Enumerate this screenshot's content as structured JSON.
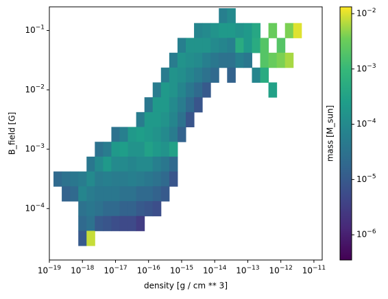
{
  "chart_data": {
    "type": "histogram2d",
    "x_label": "density [g / cm ** 3]",
    "y_label": "B_field [G]",
    "colorbar_label": "mass [M_sun]",
    "xscale": "log",
    "yscale": "log",
    "colorscale": "log",
    "colormap": "viridis",
    "xlim": [
      1e-19,
      1.78e-11
    ],
    "ylim": [
      1.36e-05,
      0.25
    ],
    "clim": [
      3.5e-07,
      0.0133
    ],
    "xticks": [
      {
        "value": 1e-19,
        "label": "10−19"
      },
      {
        "value": 1e-18,
        "label": "10−18"
      },
      {
        "value": 1e-17,
        "label": "10−17"
      },
      {
        "value": 1e-16,
        "label": "10−16"
      },
      {
        "value": 1e-15,
        "label": "10−15"
      },
      {
        "value": 1e-14,
        "label": "10−14"
      },
      {
        "value": 1e-13,
        "label": "10−13"
      },
      {
        "value": 1e-12,
        "label": "10−12"
      },
      {
        "value": 1e-11,
        "label": "10−11"
      }
    ],
    "yticks": [
      {
        "value": 0.0001,
        "label": "10−4"
      },
      {
        "value": 0.001,
        "label": "10−3"
      },
      {
        "value": 0.01,
        "label": "10−2"
      },
      {
        "value": 0.1,
        "label": "10−1"
      }
    ],
    "cticks": [
      {
        "value": 1e-06,
        "label": "10−6"
      },
      {
        "value": 1e-05,
        "label": "10−5"
      },
      {
        "value": 0.0001,
        "label": "10−4"
      },
      {
        "value": 0.001,
        "label": "10−3"
      },
      {
        "value": 0.01,
        "label": "10−2"
      }
    ],
    "columns": [
      {
        "x": 1.778e-19,
        "y": [
          0.0003162
        ],
        "mass": [
          2e-05
        ]
      },
      {
        "x": 3.162e-19,
        "y": [
          0.0003162,
          0.0001778
        ],
        "mass": [
          3e-05,
          1.5e-05
        ]
      },
      {
        "x": 5.623e-19,
        "y": [
          0.0003162,
          0.0001778
        ],
        "mass": [
          4e-05,
          2e-05
        ]
      },
      {
        "x": 1e-18,
        "y": [
          0.0003162,
          0.0001778,
          0.0001,
          5.623e-05,
          3.162e-05
        ],
        "mass": [
          5e-05,
          8e-05,
          3e-05,
          2e-05,
          1e-05
        ]
      },
      {
        "x": 1.778e-18,
        "y": [
          0.0005623,
          0.0003162,
          0.0001778,
          0.0001,
          5.623e-05,
          3.162e-05
        ],
        "mass": [
          4e-05,
          0.0001,
          5e-05,
          4e-05,
          3e-05,
          0.008
        ]
      },
      {
        "x": 3.162e-18,
        "y": [
          0.001,
          0.0005623,
          0.0003162,
          0.0001778,
          0.0001,
          5.623e-05
        ],
        "mass": [
          3e-05,
          0.0001,
          5e-05,
          4e-05,
          3e-05,
          1e-05
        ]
      },
      {
        "x": 5.623e-18,
        "y": [
          0.001,
          0.0005623,
          0.0003162,
          0.0001778,
          0.0001,
          5.623e-05
        ],
        "mass": [
          5e-05,
          0.0002,
          6e-05,
          4e-05,
          2e-05,
          8e-06
        ]
      },
      {
        "x": 1e-17,
        "y": [
          0.001778,
          0.001,
          0.0005623,
          0.0003162,
          0.0001778,
          0.0001,
          5.623e-05
        ],
        "mass": [
          3e-05,
          0.0002,
          0.0001,
          5e-05,
          4e-05,
          2e-05,
          6e-06
        ]
      },
      {
        "x": 1.778e-17,
        "y": [
          0.001778,
          0.001,
          0.0005623,
          0.0003162,
          0.0001778,
          0.0001,
          5.623e-05
        ],
        "mass": [
          6e-05,
          0.00025,
          0.0001,
          5e-05,
          3e-05,
          1.5e-05,
          5e-06
        ]
      },
      {
        "x": 3.162e-17,
        "y": [
          0.001778,
          0.001,
          0.0005623,
          0.0003162,
          0.0001778,
          0.0001,
          5.623e-05
        ],
        "mass": [
          0.0002,
          0.00015,
          8e-05,
          6e-05,
          3e-05,
          1.5e-05,
          5e-06
        ]
      },
      {
        "x": 5.623e-17,
        "y": [
          0.003162,
          0.001778,
          0.001,
          0.0005623,
          0.0003162,
          0.0001778,
          0.0001,
          5.623e-05
        ],
        "mass": [
          5e-05,
          0.00025,
          0.00015,
          0.0001,
          5e-05,
          2e-05,
          1e-05,
          3e-06
        ]
      },
      {
        "x": 1e-16,
        "y": [
          0.005623,
          0.003162,
          0.001778,
          0.001,
          0.0005623,
          0.0003162,
          0.0001778,
          0.0001
        ],
        "mass": [
          4e-05,
          0.0002,
          0.0002,
          0.0003,
          0.0001,
          4e-05,
          2e-05,
          8e-06
        ]
      },
      {
        "x": 1.778e-16,
        "y": [
          0.01,
          0.005623,
          0.003162,
          0.001778,
          0.001,
          0.0005623,
          0.0003162,
          0.0001778,
          0.0001
        ],
        "mass": [
          5e-05,
          0.0002,
          0.0002,
          0.00015,
          0.0002,
          6e-05,
          3e-05,
          1.5e-05,
          6e-06
        ]
      },
      {
        "x": 3.162e-16,
        "y": [
          0.01778,
          0.01,
          0.005623,
          0.003162,
          0.001778,
          0.001,
          0.0005623,
          0.0003162,
          0.0001778
        ],
        "mass": [
          5e-05,
          0.0002,
          0.0002,
          0.00015,
          0.0001,
          0.00015,
          4e-05,
          2e-05,
          1e-05
        ]
      },
      {
        "x": 5.623e-16,
        "y": [
          0.03162,
          0.01778,
          0.01,
          0.005623,
          0.003162,
          0.001778,
          0.001,
          0.0005623,
          0.0003162
        ],
        "mass": [
          5e-05,
          0.00015,
          0.00015,
          0.0001,
          8e-05,
          5e-05,
          0.0003,
          2e-05,
          8e-06
        ]
      },
      {
        "x": 1e-15,
        "y": [
          0.05623,
          0.03162,
          0.01778,
          0.01,
          0.005623,
          0.003162,
          0.001778
        ],
        "mass": [
          6e-05,
          0.00015,
          0.00012,
          8e-05,
          5e-05,
          3e-05,
          1.5e-05
        ]
      },
      {
        "x": 1.778e-15,
        "y": [
          0.05623,
          0.03162,
          0.01778,
          0.01,
          0.005623,
          0.003162
        ],
        "mass": [
          0.00015,
          0.00012,
          8e-05,
          4e-05,
          2e-05,
          8e-06
        ]
      },
      {
        "x": 3.162e-15,
        "y": [
          0.1,
          0.05623,
          0.03162,
          0.01778,
          0.01,
          0.005623
        ],
        "mass": [
          8e-05,
          0.00015,
          0.0001,
          5e-05,
          2e-05,
          8e-06
        ]
      },
      {
        "x": 5.623e-15,
        "y": [
          0.1,
          0.05623,
          0.03162,
          0.01778,
          0.01
        ],
        "mass": [
          0.0001,
          0.00015,
          6e-05,
          3e-05,
          1e-05
        ]
      },
      {
        "x": 1e-14,
        "y": [
          0.1,
          0.05623,
          0.03162,
          0.01778
        ],
        "mass": [
          0.00015,
          0.0001,
          4e-05,
          2e-05
        ]
      },
      {
        "x": 1.778e-14,
        "y": [
          0.1778,
          0.1,
          0.05623,
          0.03162
        ],
        "mass": [
          6e-05,
          0.0002,
          8e-05,
          3e-05
        ]
      },
      {
        "x": 3.162e-14,
        "y": [
          0.1778,
          0.1,
          0.05623,
          0.03162,
          0.01778
        ],
        "mass": [
          0.0001,
          0.0002,
          6e-05,
          3e-05,
          1.5e-05
        ]
      },
      {
        "x": 5.623e-14,
        "y": [
          0.1,
          0.05623,
          0.03162
        ],
        "mass": [
          0.00015,
          0.0005,
          6e-05
        ]
      },
      {
        "x": 1e-13,
        "y": [
          0.1,
          0.05623,
          0.03162
        ],
        "mass": [
          0.0002,
          0.0002,
          4e-05
        ]
      },
      {
        "x": 1.778e-13,
        "y": [
          0.1,
          0.05623,
          0.01778
        ],
        "mass": [
          0.0004,
          0.0005,
          8e-05
        ]
      },
      {
        "x": 3.162e-13,
        "y": [
          0.05623,
          0.03162,
          0.01778
        ],
        "mass": [
          0.002,
          0.002,
          0.0005
        ]
      },
      {
        "x": 5.623e-13,
        "y": [
          0.1,
          0.03162,
          0.01
        ],
        "mass": [
          0.003,
          0.003,
          0.0003
        ]
      },
      {
        "x": 1e-12,
        "y": [
          0.05623,
          0.03162
        ],
        "mass": [
          0.002,
          0.004
        ]
      },
      {
        "x": 1.778e-12,
        "y": [
          0.1,
          0.03162
        ],
        "mass": [
          0.004,
          0.006
        ]
      },
      {
        "x": 3.162e-12,
        "y": [
          0.1
        ],
        "mass": [
          0.01
        ]
      }
    ]
  }
}
